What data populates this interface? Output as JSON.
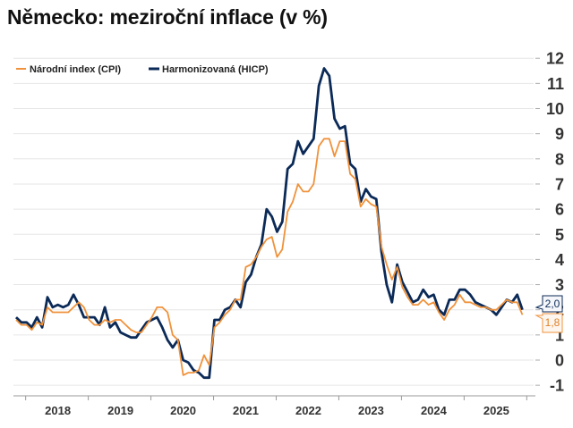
{
  "chart_data": {
    "type": "line",
    "title": "Německo: meziroční inflace (v %)",
    "xlabel": "",
    "ylabel": "",
    "x_start": "2017-11",
    "x_end": "2025-12",
    "frequency": "monthly",
    "x_tick_labels": [
      "2018",
      "2019",
      "2020",
      "2021",
      "2022",
      "2023",
      "2024",
      "2025"
    ],
    "ylim": [
      -1,
      12
    ],
    "y_ticks": [
      -1,
      0,
      1,
      2,
      3,
      4,
      5,
      6,
      7,
      8,
      9,
      10,
      11,
      12
    ],
    "y_axis_side": "right",
    "grid": true,
    "legend_placement": "top-left",
    "series": [
      {
        "name": "Národní index (CPI)",
        "color": "#F0923B",
        "end_label": "1,8",
        "values": [
          1.6,
          1.4,
          1.4,
          1.2,
          1.5,
          1.4,
          2.1,
          1.9,
          1.9,
          1.9,
          1.9,
          2.1,
          2.3,
          2.1,
          1.6,
          1.4,
          1.4,
          1.6,
          1.5,
          1.6,
          1.6,
          1.4,
          1.2,
          1.1,
          1.1,
          1.4,
          1.7,
          2.1,
          2.1,
          1.9,
          1.0,
          0.8,
          -0.6,
          -0.5,
          -0.5,
          -0.4,
          0.2,
          -0.2,
          1.3,
          1.5,
          1.8,
          2.0,
          2.4,
          2.4,
          3.7,
          3.8,
          4.1,
          4.5,
          4.8,
          4.9,
          4.1,
          4.4,
          5.9,
          6.3,
          7.0,
          6.7,
          6.7,
          7.0,
          8.5,
          8.8,
          8.8,
          8.1,
          8.7,
          8.7,
          7.4,
          7.2,
          6.1,
          6.4,
          6.2,
          6.1,
          4.5,
          3.8,
          3.2,
          3.7,
          2.9,
          2.5,
          2.2,
          2.2,
          2.4,
          2.2,
          2.3,
          1.9,
          1.6,
          2.0,
          2.2,
          2.6,
          2.3,
          2.3,
          2.2,
          2.1,
          2.1,
          2.0,
          2.0,
          2.2,
          2.4,
          2.3,
          2.3,
          1.8
        ]
      },
      {
        "name": "Harmonizovaná (HICP)",
        "color": "#0B2A57",
        "end_label": "2,0",
        "values": [
          1.7,
          1.5,
          1.5,
          1.3,
          1.7,
          1.3,
          2.5,
          2.1,
          2.2,
          2.1,
          2.2,
          2.6,
          2.2,
          1.7,
          1.7,
          1.7,
          1.4,
          2.1,
          1.3,
          1.5,
          1.1,
          1.0,
          0.9,
          0.9,
          1.2,
          1.5,
          1.6,
          1.7,
          1.3,
          0.8,
          0.5,
          0.8,
          0.0,
          -0.1,
          -0.4,
          -0.5,
          -0.7,
          -0.7,
          1.6,
          1.6,
          2.0,
          2.1,
          2.4,
          2.1,
          3.1,
          3.4,
          4.1,
          4.6,
          6.0,
          5.7,
          5.1,
          5.5,
          7.6,
          7.8,
          8.7,
          8.2,
          8.5,
          8.8,
          10.9,
          11.6,
          11.3,
          9.6,
          9.2,
          9.3,
          7.8,
          7.6,
          6.3,
          6.8,
          6.5,
          6.4,
          4.3,
          3.0,
          2.3,
          3.8,
          3.1,
          2.7,
          2.3,
          2.4,
          2.8,
          2.5,
          2.6,
          2.0,
          1.8,
          2.4,
          2.4,
          2.8,
          2.8,
          2.6,
          2.3,
          2.2,
          2.1,
          2.0,
          1.8,
          2.1,
          2.4,
          2.3,
          2.6,
          2.0
        ]
      }
    ]
  }
}
